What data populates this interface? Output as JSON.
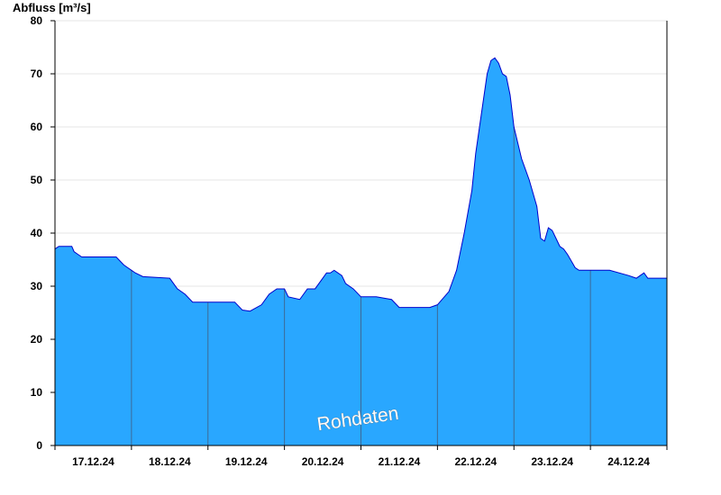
{
  "chart_data": {
    "type": "area",
    "title": "",
    "ylabel": "Abfluss [m³/s]",
    "xlabel": "",
    "ylim": [
      0,
      80
    ],
    "xlim": [
      0,
      8
    ],
    "yticks": [
      0,
      10,
      20,
      30,
      40,
      50,
      60,
      70,
      80
    ],
    "x_tick_labels": [
      "17.12.24",
      "18.12.24",
      "19.12.24",
      "20.12.24",
      "21.12.24",
      "22.12.24",
      "23.12.24",
      "24.12.24"
    ],
    "x_unit": "days since start of 17.12.24 (00:00)",
    "grid": true,
    "watermark": "Rohdaten",
    "colors": {
      "fill": "#29a7ff",
      "line": "#0000cc",
      "grid": "#e4e4e4",
      "day_line": "#3d6a96"
    },
    "series": [
      {
        "name": "",
        "x": [
          0,
          0.05,
          0.22,
          0.25,
          0.3,
          0.35,
          0.8,
          0.9,
          0.95,
          1.0,
          1.05,
          1.15,
          1.5,
          1.6,
          1.7,
          1.8,
          2.0,
          2.35,
          2.45,
          2.55,
          2.7,
          2.8,
          2.9,
          2.95,
          3.0,
          3.05,
          3.2,
          3.3,
          3.4,
          3.5,
          3.55,
          3.6,
          3.65,
          3.75,
          3.8,
          3.9,
          4.0,
          4.2,
          4.4,
          4.5,
          4.6,
          4.7,
          4.8,
          4.9,
          5.0,
          5.15,
          5.25,
          5.35,
          5.45,
          5.5,
          5.55,
          5.6,
          5.65,
          5.7,
          5.75,
          5.8,
          5.85,
          5.9,
          5.95,
          6.0,
          6.05,
          6.1,
          6.15,
          6.2,
          6.3,
          6.35,
          6.4,
          6.45,
          6.5,
          6.55,
          6.6,
          6.65,
          6.7,
          6.8,
          6.85,
          6.95,
          7.0,
          7.25,
          7.5,
          7.6,
          7.65,
          7.7,
          7.75,
          8.0
        ],
        "values": [
          37,
          37.5,
          37.5,
          36.5,
          36,
          35.5,
          35.5,
          34,
          33.5,
          33,
          32.5,
          31.8,
          31.5,
          29.5,
          28.5,
          27,
          27,
          27,
          25.5,
          25.3,
          26.5,
          28.5,
          29.5,
          29.5,
          29.5,
          28,
          27.5,
          29.5,
          29.5,
          31.5,
          32.5,
          32.5,
          33,
          32,
          30.5,
          29.5,
          28,
          28,
          27.5,
          26,
          26,
          26,
          26,
          26,
          26.5,
          29,
          33,
          40,
          48,
          55,
          60,
          65,
          70,
          72.5,
          73,
          72,
          70,
          69.5,
          66,
          60,
          57,
          54,
          52,
          50,
          45,
          39,
          38.5,
          41,
          40.5,
          39,
          37.5,
          37,
          36,
          33.5,
          33,
          33,
          33,
          33,
          32,
          31.5,
          32,
          32.5,
          31.5,
          31.5
        ]
      }
    ]
  }
}
